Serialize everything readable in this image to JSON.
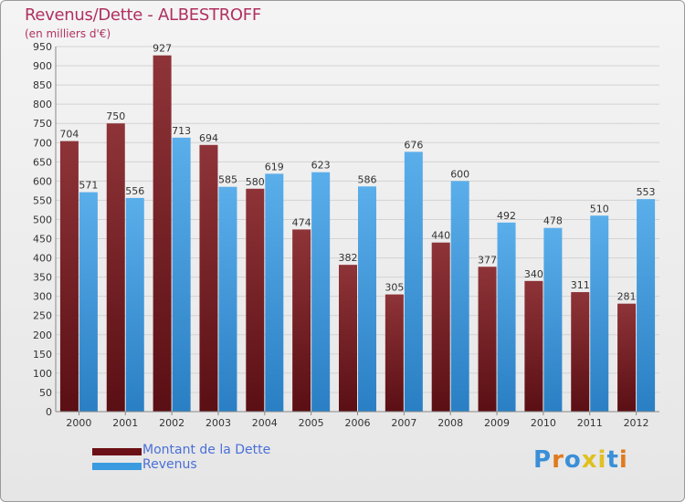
{
  "chart_data": {
    "type": "bar",
    "title": "Revenus/Dette - ALBESTROFF",
    "subtitle": "(en milliers d'€)",
    "xlabel": "",
    "ylabel": "",
    "ylim": [
      0,
      950
    ],
    "yticks": [
      0,
      50,
      100,
      150,
      200,
      250,
      300,
      350,
      400,
      450,
      500,
      550,
      600,
      650,
      700,
      750,
      800,
      850,
      900,
      950
    ],
    "grid": true,
    "categories": [
      "2000",
      "2001",
      "2002",
      "2003",
      "2004",
      "2005",
      "2006",
      "2007",
      "2008",
      "2009",
      "2010",
      "2011",
      "2012"
    ],
    "series": [
      {
        "name": "Montant de la Dette",
        "color": "#7a1c22",
        "values": [
          704,
          750,
          927,
          694,
          580,
          474,
          382,
          305,
          440,
          377,
          340,
          311,
          281
        ]
      },
      {
        "name": "Revenus",
        "color": "#3b9be0",
        "values": [
          571,
          556,
          713,
          585,
          619,
          623,
          586,
          676,
          600,
          492,
          478,
          510,
          553
        ]
      }
    ],
    "legend_position": "bottom-left"
  },
  "branding": {
    "logo_text": "Proxiti"
  }
}
